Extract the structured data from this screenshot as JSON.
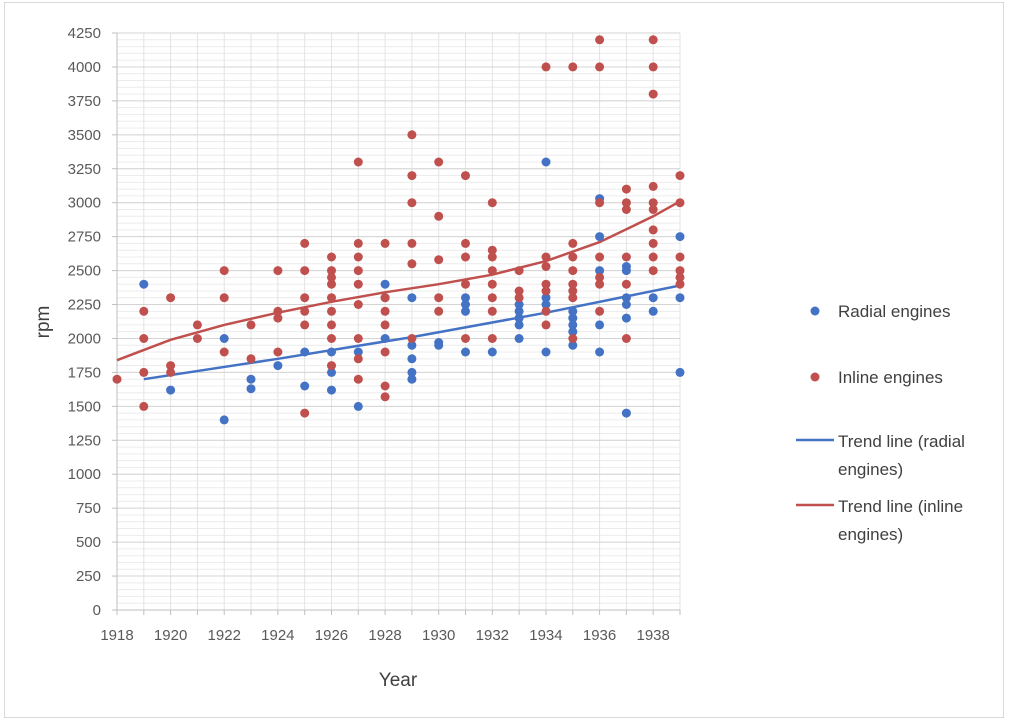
{
  "chart_data": {
    "type": "scatter",
    "title": "",
    "xlabel": "Year",
    "ylabel": "rpm",
    "xlim": [
      1918,
      1939
    ],
    "ylim": [
      0,
      4250
    ],
    "x_ticks": [
      "1918",
      "1920",
      "1922",
      "1924",
      "1926",
      "1928",
      "1930",
      "1932",
      "1934",
      "1936",
      "1938"
    ],
    "y_ticks": [
      "0",
      "250",
      "500",
      "750",
      "1000",
      "1250",
      "1500",
      "1750",
      "2000",
      "2250",
      "2500",
      "2750",
      "3000",
      "3250",
      "3500",
      "3750",
      "4000",
      "4250"
    ],
    "grid": true,
    "legend_position": "right",
    "colors": {
      "radial": "#4472c4",
      "inline": "#c0504d",
      "grid": "#d9d9d9",
      "axis": "#bfbfbf"
    },
    "series": [
      {
        "name": "Radial engines",
        "kind": "points",
        "points": [
          [
            1919,
            2400
          ],
          [
            1920,
            1620
          ],
          [
            1922,
            2000
          ],
          [
            1922,
            1400
          ],
          [
            1923,
            1700
          ],
          [
            1923,
            1630
          ],
          [
            1924,
            1800
          ],
          [
            1925,
            1900
          ],
          [
            1925,
            1650
          ],
          [
            1926,
            1900
          ],
          [
            1926,
            1620
          ],
          [
            1926,
            1750
          ],
          [
            1927,
            1500
          ],
          [
            1927,
            1900
          ],
          [
            1928,
            2400
          ],
          [
            1928,
            2000
          ],
          [
            1928,
            2300
          ],
          [
            1929,
            2300
          ],
          [
            1929,
            1950
          ],
          [
            1929,
            1850
          ],
          [
            1929,
            1750
          ],
          [
            1929,
            1700
          ],
          [
            1930,
            1950
          ],
          [
            1930,
            1970
          ],
          [
            1931,
            2300
          ],
          [
            1931,
            2250
          ],
          [
            1931,
            2200
          ],
          [
            1931,
            1900
          ],
          [
            1932,
            1900
          ],
          [
            1933,
            2250
          ],
          [
            1933,
            2150
          ],
          [
            1933,
            2100
          ],
          [
            1933,
            2000
          ],
          [
            1933,
            2200
          ],
          [
            1934,
            3300
          ],
          [
            1934,
            2300
          ],
          [
            1934,
            2250
          ],
          [
            1934,
            1900
          ],
          [
            1935,
            2200
          ],
          [
            1935,
            2150
          ],
          [
            1935,
            2100
          ],
          [
            1935,
            2050
          ],
          [
            1935,
            1950
          ],
          [
            1936,
            3030
          ],
          [
            1936,
            2750
          ],
          [
            1936,
            2500
          ],
          [
            1936,
            2100
          ],
          [
            1936,
            1900
          ],
          [
            1937,
            2530
          ],
          [
            1937,
            2500
          ],
          [
            1937,
            2300
          ],
          [
            1937,
            2250
          ],
          [
            1937,
            2150
          ],
          [
            1937,
            1450
          ],
          [
            1938,
            2300
          ],
          [
            1938,
            2200
          ],
          [
            1939,
            2750
          ],
          [
            1939,
            2300
          ],
          [
            1939,
            1750
          ]
        ]
      },
      {
        "name": "Inline engines",
        "kind": "points",
        "points": [
          [
            1918,
            1700
          ],
          [
            1919,
            2200
          ],
          [
            1919,
            2000
          ],
          [
            1919,
            1750
          ],
          [
            1919,
            1500
          ],
          [
            1920,
            2300
          ],
          [
            1920,
            1800
          ],
          [
            1920,
            1750
          ],
          [
            1921,
            2100
          ],
          [
            1921,
            2000
          ],
          [
            1922,
            2500
          ],
          [
            1922,
            2300
          ],
          [
            1922,
            1900
          ],
          [
            1923,
            2100
          ],
          [
            1923,
            1850
          ],
          [
            1924,
            2500
          ],
          [
            1924,
            2200
          ],
          [
            1924,
            2150
          ],
          [
            1924,
            1900
          ],
          [
            1925,
            2700
          ],
          [
            1925,
            2500
          ],
          [
            1925,
            2300
          ],
          [
            1925,
            2200
          ],
          [
            1925,
            2100
          ],
          [
            1925,
            1450
          ],
          [
            1926,
            2600
          ],
          [
            1926,
            2500
          ],
          [
            1926,
            2450
          ],
          [
            1926,
            2400
          ],
          [
            1926,
            2300
          ],
          [
            1926,
            2200
          ],
          [
            1926,
            2100
          ],
          [
            1926,
            2000
          ],
          [
            1926,
            1800
          ],
          [
            1927,
            3300
          ],
          [
            1927,
            2700
          ],
          [
            1927,
            2600
          ],
          [
            1927,
            2500
          ],
          [
            1927,
            2400
          ],
          [
            1927,
            2250
          ],
          [
            1927,
            2000
          ],
          [
            1927,
            1850
          ],
          [
            1927,
            1700
          ],
          [
            1928,
            2700
          ],
          [
            1928,
            2300
          ],
          [
            1928,
            2200
          ],
          [
            1928,
            2100
          ],
          [
            1928,
            1900
          ],
          [
            1928,
            1650
          ],
          [
            1928,
            1570
          ],
          [
            1929,
            3500
          ],
          [
            1929,
            3200
          ],
          [
            1929,
            3000
          ],
          [
            1929,
            2700
          ],
          [
            1929,
            2550
          ],
          [
            1929,
            2000
          ],
          [
            1930,
            3300
          ],
          [
            1930,
            2900
          ],
          [
            1930,
            2580
          ],
          [
            1930,
            2300
          ],
          [
            1930,
            2200
          ],
          [
            1931,
            3200
          ],
          [
            1931,
            2700
          ],
          [
            1931,
            2600
          ],
          [
            1931,
            2400
          ],
          [
            1931,
            2000
          ],
          [
            1932,
            3000
          ],
          [
            1932,
            2650
          ],
          [
            1932,
            2600
          ],
          [
            1932,
            2500
          ],
          [
            1932,
            2400
          ],
          [
            1932,
            2300
          ],
          [
            1932,
            2200
          ],
          [
            1932,
            2000
          ],
          [
            1933,
            2500
          ],
          [
            1933,
            2350
          ],
          [
            1933,
            2300
          ],
          [
            1934,
            4000
          ],
          [
            1934,
            2600
          ],
          [
            1934,
            2530
          ],
          [
            1934,
            2400
          ],
          [
            1934,
            2350
          ],
          [
            1934,
            2200
          ],
          [
            1934,
            2100
          ],
          [
            1935,
            4000
          ],
          [
            1935,
            2700
          ],
          [
            1935,
            2600
          ],
          [
            1935,
            2500
          ],
          [
            1935,
            2400
          ],
          [
            1935,
            2350
          ],
          [
            1935,
            2300
          ],
          [
            1935,
            2000
          ],
          [
            1936,
            4200
          ],
          [
            1936,
            4000
          ],
          [
            1936,
            3000
          ],
          [
            1936,
            2600
          ],
          [
            1936,
            2450
          ],
          [
            1936,
            2400
          ],
          [
            1936,
            2200
          ],
          [
            1937,
            3100
          ],
          [
            1937,
            3000
          ],
          [
            1937,
            2950
          ],
          [
            1937,
            2600
          ],
          [
            1937,
            2400
          ],
          [
            1937,
            2000
          ],
          [
            1938,
            4200
          ],
          [
            1938,
            4000
          ],
          [
            1938,
            3800
          ],
          [
            1938,
            3120
          ],
          [
            1938,
            3000
          ],
          [
            1938,
            2950
          ],
          [
            1938,
            2800
          ],
          [
            1938,
            2700
          ],
          [
            1938,
            2600
          ],
          [
            1938,
            2500
          ],
          [
            1939,
            3200
          ],
          [
            1939,
            3000
          ],
          [
            1939,
            2600
          ],
          [
            1939,
            2500
          ],
          [
            1939,
            2450
          ],
          [
            1939,
            2400
          ]
        ]
      },
      {
        "name": "Trend line (radial engines)",
        "kind": "line",
        "points": [
          [
            1919,
            1700
          ],
          [
            1924,
            1850
          ],
          [
            1929,
            2010
          ],
          [
            1934,
            2190
          ],
          [
            1939,
            2390
          ]
        ]
      },
      {
        "name": "Trend line (inline engines)",
        "kind": "line",
        "points": [
          [
            1918,
            1840
          ],
          [
            1920,
            1990
          ],
          [
            1922,
            2100
          ],
          [
            1924,
            2190
          ],
          [
            1926,
            2270
          ],
          [
            1928,
            2340
          ],
          [
            1930,
            2400
          ],
          [
            1932,
            2470
          ],
          [
            1934,
            2570
          ],
          [
            1936,
            2710
          ],
          [
            1938,
            2900
          ],
          [
            1939,
            3010
          ]
        ]
      }
    ]
  },
  "legend": {
    "radial_points": "Radial engines",
    "inline_points": "Inline engines",
    "radial_trend_line1": "Trend line (radial",
    "radial_trend_line2": "engines)",
    "inline_trend_line1": "Trend line (inline",
    "inline_trend_line2": "engines)"
  }
}
